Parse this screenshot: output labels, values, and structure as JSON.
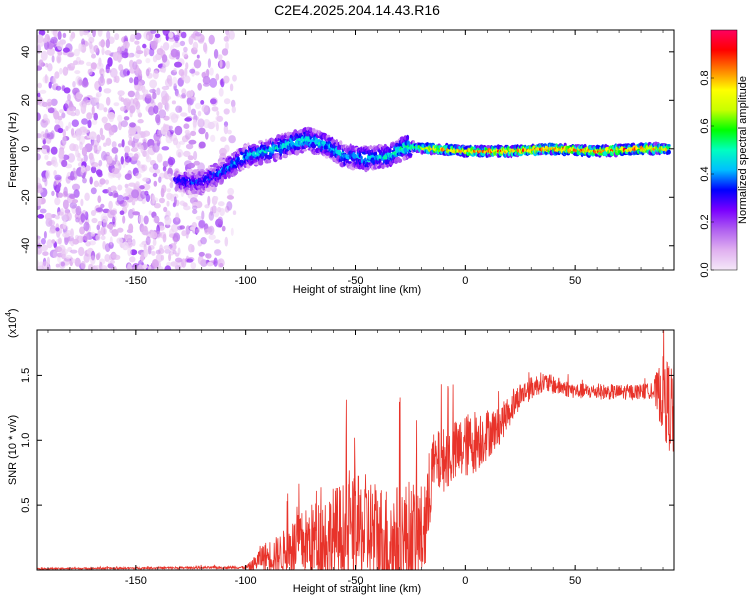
{
  "figure_title": "C2E4.2025.204.14.43.R16",
  "chart_data": [
    {
      "type": "heatmap",
      "xlabel": "Height of straight line (km)",
      "ylabel": "Frequency (Hz)",
      "xlim": [
        -195,
        95
      ],
      "ylim": [
        -50,
        49
      ],
      "x_ticks": [
        -150,
        -100,
        -50,
        0,
        50
      ],
      "y_ticks": [
        -40,
        -20,
        0,
        20,
        40
      ],
      "x_tick_labels": [
        "-150",
        "-100",
        "-50",
        "0",
        "50"
      ],
      "y_tick_labels": [
        "-40",
        "-20",
        "0",
        "20",
        "40"
      ],
      "colorbar": {
        "label": "Normalized spectral amplitude",
        "range": [
          0.0,
          1.0
        ],
        "ticks": [
          0.0,
          0.2,
          0.4,
          0.6,
          0.8
        ],
        "tick_labels": [
          "0.0",
          "0.2",
          "0.4",
          "0.6",
          "0.8"
        ],
        "colormap": [
          "#f5e8f8",
          "#e0b0f0",
          "#b060f0",
          "#7a00ff",
          "#0000ff",
          "#00bfff",
          "#00ffc0",
          "#00ff00",
          "#c8ff00",
          "#ffff00",
          "#ff8000",
          "#ff0000",
          "#ff0060"
        ]
      },
      "ridge_track": [
        {
          "x": -132,
          "y": -13,
          "a": 0.3
        },
        {
          "x": -120,
          "y": -14,
          "a": 0.32
        },
        {
          "x": -110,
          "y": -9,
          "a": 0.38
        },
        {
          "x": -100,
          "y": -3,
          "a": 0.42
        },
        {
          "x": -90,
          "y": -1,
          "a": 0.45
        },
        {
          "x": -80,
          "y": 2,
          "a": 0.48
        },
        {
          "x": -72,
          "y": 4,
          "a": 0.5
        },
        {
          "x": -62,
          "y": 1,
          "a": 0.45
        },
        {
          "x": -55,
          "y": -3,
          "a": 0.42
        },
        {
          "x": -45,
          "y": -4,
          "a": 0.45
        },
        {
          "x": -35,
          "y": -3,
          "a": 0.48
        },
        {
          "x": -26,
          "y": 1,
          "a": 0.55
        },
        {
          "x": -15,
          "y": 0,
          "a": 0.78
        },
        {
          "x": 0,
          "y": -1,
          "a": 0.85
        },
        {
          "x": 20,
          "y": -1,
          "a": 0.88
        },
        {
          "x": 40,
          "y": 0,
          "a": 0.9
        },
        {
          "x": 60,
          "y": -1,
          "a": 0.9
        },
        {
          "x": 80,
          "y": 0,
          "a": 0.88
        },
        {
          "x": 93,
          "y": 0,
          "a": 0.8
        }
      ]
    },
    {
      "type": "line",
      "xlabel": "Height of straight line (km)",
      "ylabel": "SNR (10 * v/v)",
      "y_scale_note": "(x10",
      "y_scale_exponent": "4",
      "xlim": [
        -195,
        95
      ],
      "ylim": [
        0,
        1.85
      ],
      "x_ticks": [
        -150,
        -100,
        -50,
        0,
        50
      ],
      "y_ticks": [
        0.5,
        1.0,
        1.5
      ],
      "x_tick_labels": [
        "-150",
        "-100",
        "-50",
        "0",
        "50"
      ],
      "y_tick_labels": [
        "0.5",
        "1.0",
        "1.5"
      ],
      "series": [
        {
          "color": "#e8332a",
          "envelope": [
            {
              "x": -195,
              "base": 0.01,
              "amp": 0.005
            },
            {
              "x": -100,
              "base": 0.02,
              "amp": 0.01
            },
            {
              "x": -97,
              "base": 0.03,
              "amp": 0.05
            },
            {
              "x": -93,
              "base": 0.1,
              "amp": 0.1
            },
            {
              "x": -85,
              "base": 0.12,
              "amp": 0.15
            },
            {
              "x": -75,
              "base": 0.2,
              "amp": 0.25
            },
            {
              "x": -60,
              "base": 0.25,
              "amp": 0.4
            },
            {
              "x": -45,
              "base": 0.3,
              "amp": 0.45
            },
            {
              "x": -35,
              "base": 0.2,
              "amp": 0.45
            },
            {
              "x": -25,
              "base": 0.25,
              "amp": 0.45
            },
            {
              "x": -18,
              "base": 0.3,
              "amp": 0.35
            },
            {
              "x": -15,
              "base": 0.8,
              "amp": 0.25
            },
            {
              "x": -5,
              "base": 0.9,
              "amp": 0.25
            },
            {
              "x": 5,
              "base": 1.0,
              "amp": 0.25
            },
            {
              "x": 15,
              "base": 1.1,
              "amp": 0.15
            },
            {
              "x": 25,
              "base": 1.35,
              "amp": 0.1
            },
            {
              "x": 35,
              "base": 1.45,
              "amp": 0.08
            },
            {
              "x": 50,
              "base": 1.38,
              "amp": 0.06
            },
            {
              "x": 70,
              "base": 1.37,
              "amp": 0.06
            },
            {
              "x": 85,
              "base": 1.38,
              "amp": 0.06
            },
            {
              "x": 90,
              "base": 1.35,
              "amp": 0.3
            },
            {
              "x": 95,
              "base": 1.2,
              "amp": 0.4
            }
          ]
        }
      ]
    }
  ]
}
